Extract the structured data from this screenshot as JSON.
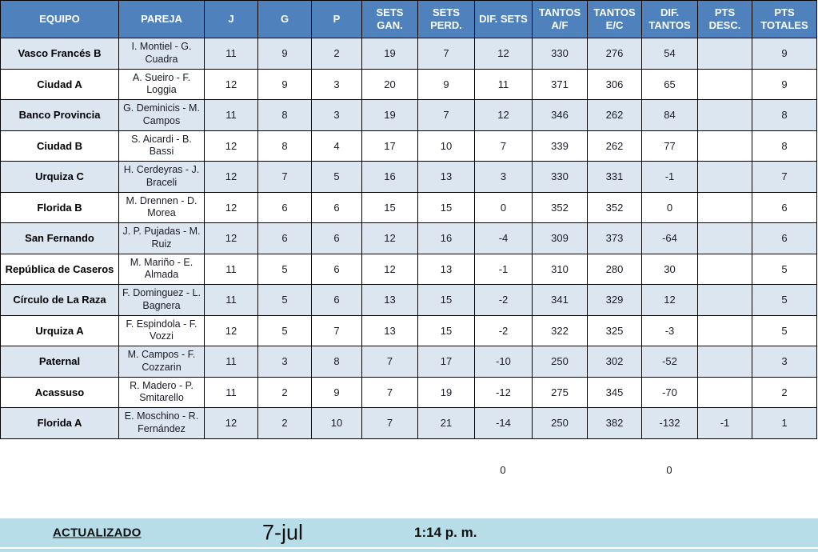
{
  "table": {
    "columns": [
      {
        "key": "equipo",
        "label": "EQUIPO"
      },
      {
        "key": "pareja",
        "label": "PAREJA"
      },
      {
        "key": "j",
        "label": "J"
      },
      {
        "key": "g",
        "label": "G"
      },
      {
        "key": "p",
        "label": "P"
      },
      {
        "key": "sets_gan",
        "label": "SETS GAN."
      },
      {
        "key": "sets_perd",
        "label": "SETS PERD."
      },
      {
        "key": "dif_sets",
        "label": "DIF. SETS"
      },
      {
        "key": "tantos_af",
        "label": "TANTOS A/F"
      },
      {
        "key": "tantos_ec",
        "label": "TANTOS E/C"
      },
      {
        "key": "dif_tantos",
        "label": "DIF. TANTOS"
      },
      {
        "key": "pts_desc",
        "label": "PTS DESC."
      },
      {
        "key": "pts_totales",
        "label": "PTS TOTALES"
      }
    ],
    "rows": [
      {
        "equipo": "Vasco Francés B",
        "pareja": "I. Montiel - G. Cuadra",
        "j": "11",
        "g": "9",
        "p": "2",
        "sets_gan": "19",
        "sets_perd": "7",
        "dif_sets": "12",
        "tantos_af": "330",
        "tantos_ec": "276",
        "dif_tantos": "54",
        "pts_desc": "",
        "pts_totales": "9"
      },
      {
        "equipo": "Ciudad A",
        "pareja": "A. Sueiro - F. Loggia",
        "j": "12",
        "g": "9",
        "p": "3",
        "sets_gan": "20",
        "sets_perd": "9",
        "dif_sets": "11",
        "tantos_af": "371",
        "tantos_ec": "306",
        "dif_tantos": "65",
        "pts_desc": "",
        "pts_totales": "9"
      },
      {
        "equipo": "Banco Provincia",
        "pareja": "G. Deminicis - M. Campos",
        "j": "11",
        "g": "8",
        "p": "3",
        "sets_gan": "19",
        "sets_perd": "7",
        "dif_sets": "12",
        "tantos_af": "346",
        "tantos_ec": "262",
        "dif_tantos": "84",
        "pts_desc": "",
        "pts_totales": "8"
      },
      {
        "equipo": "Ciudad B",
        "pareja": "S. Aicardi - B. Bassi",
        "j": "12",
        "g": "8",
        "p": "4",
        "sets_gan": "17",
        "sets_perd": "10",
        "dif_sets": "7",
        "tantos_af": "339",
        "tantos_ec": "262",
        "dif_tantos": "77",
        "pts_desc": "",
        "pts_totales": "8"
      },
      {
        "equipo": "Urquiza C",
        "pareja": "H. Cerdeyras - J. Braceli",
        "j": "12",
        "g": "7",
        "p": "5",
        "sets_gan": "16",
        "sets_perd": "13",
        "dif_sets": "3",
        "tantos_af": "330",
        "tantos_ec": "331",
        "dif_tantos": "-1",
        "pts_desc": "",
        "pts_totales": "7"
      },
      {
        "equipo": "Florida B",
        "pareja": "M. Drennen - D. Morea",
        "j": "12",
        "g": "6",
        "p": "6",
        "sets_gan": "15",
        "sets_perd": "15",
        "dif_sets": "0",
        "tantos_af": "352",
        "tantos_ec": "352",
        "dif_tantos": "0",
        "pts_desc": "",
        "pts_totales": "6"
      },
      {
        "equipo": "San Fernando",
        "pareja": "J. P. Pujadas - M. Ruiz",
        "j": "12",
        "g": "6",
        "p": "6",
        "sets_gan": "12",
        "sets_perd": "16",
        "dif_sets": "-4",
        "tantos_af": "309",
        "tantos_ec": "373",
        "dif_tantos": "-64",
        "pts_desc": "",
        "pts_totales": "6"
      },
      {
        "equipo": "República de Caseros",
        "pareja": "M. Mariño - E. Almada",
        "j": "11",
        "g": "5",
        "p": "6",
        "sets_gan": "12",
        "sets_perd": "13",
        "dif_sets": "-1",
        "tantos_af": "310",
        "tantos_ec": "280",
        "dif_tantos": "30",
        "pts_desc": "",
        "pts_totales": "5"
      },
      {
        "equipo": "Círculo de La Raza",
        "pareja": "F. Dominguez - L. Bagnera",
        "j": "11",
        "g": "5",
        "p": "6",
        "sets_gan": "13",
        "sets_perd": "15",
        "dif_sets": "-2",
        "tantos_af": "341",
        "tantos_ec": "329",
        "dif_tantos": "12",
        "pts_desc": "",
        "pts_totales": "5"
      },
      {
        "equipo": "Urquiza A",
        "pareja": "F. Espindola - F. Vozzi",
        "j": "12",
        "g": "5",
        "p": "7",
        "sets_gan": "13",
        "sets_perd": "15",
        "dif_sets": "-2",
        "tantos_af": "322",
        "tantos_ec": "325",
        "dif_tantos": "-3",
        "pts_desc": "",
        "pts_totales": "5"
      },
      {
        "equipo": "Paternal",
        "pareja": "M. Campos - F. Cozzarin",
        "j": "11",
        "g": "3",
        "p": "8",
        "sets_gan": "7",
        "sets_perd": "17",
        "dif_sets": "-10",
        "tantos_af": "250",
        "tantos_ec": "302",
        "dif_tantos": "-52",
        "pts_desc": "",
        "pts_totales": "3"
      },
      {
        "equipo": "Acassuso",
        "pareja": "R. Madero - P. Smitarello",
        "j": "11",
        "g": "2",
        "p": "9",
        "sets_gan": "7",
        "sets_perd": "19",
        "dif_sets": "-12",
        "tantos_af": "275",
        "tantos_ec": "345",
        "dif_tantos": "-70",
        "pts_desc": "",
        "pts_totales": "2"
      },
      {
        "equipo": "Florida A",
        "pareja": "E. Moschino - R. Fernández",
        "j": "12",
        "g": "2",
        "p": "10",
        "sets_gan": "7",
        "sets_perd": "21",
        "dif_sets": "-14",
        "tantos_af": "250",
        "tantos_ec": "382",
        "dif_tantos": "-132",
        "pts_desc": "-1",
        "pts_totales": "1"
      }
    ],
    "loose_totals": {
      "dif_sets": "0",
      "dif_tantos": "0"
    }
  },
  "status_bar": {
    "label": "ACTUALIZADO",
    "date": "7-jul",
    "time": "1:14 p. m."
  },
  "colors": {
    "header_bg": "#4f81bd",
    "header_text": "#ffffff",
    "stripe_row_bg": "#dce6f1",
    "plain_row_bg": "#ffffff",
    "grid_border": "#000000",
    "status_bar_bg": "#b7dee8",
    "body_text": "#1b1b27"
  }
}
